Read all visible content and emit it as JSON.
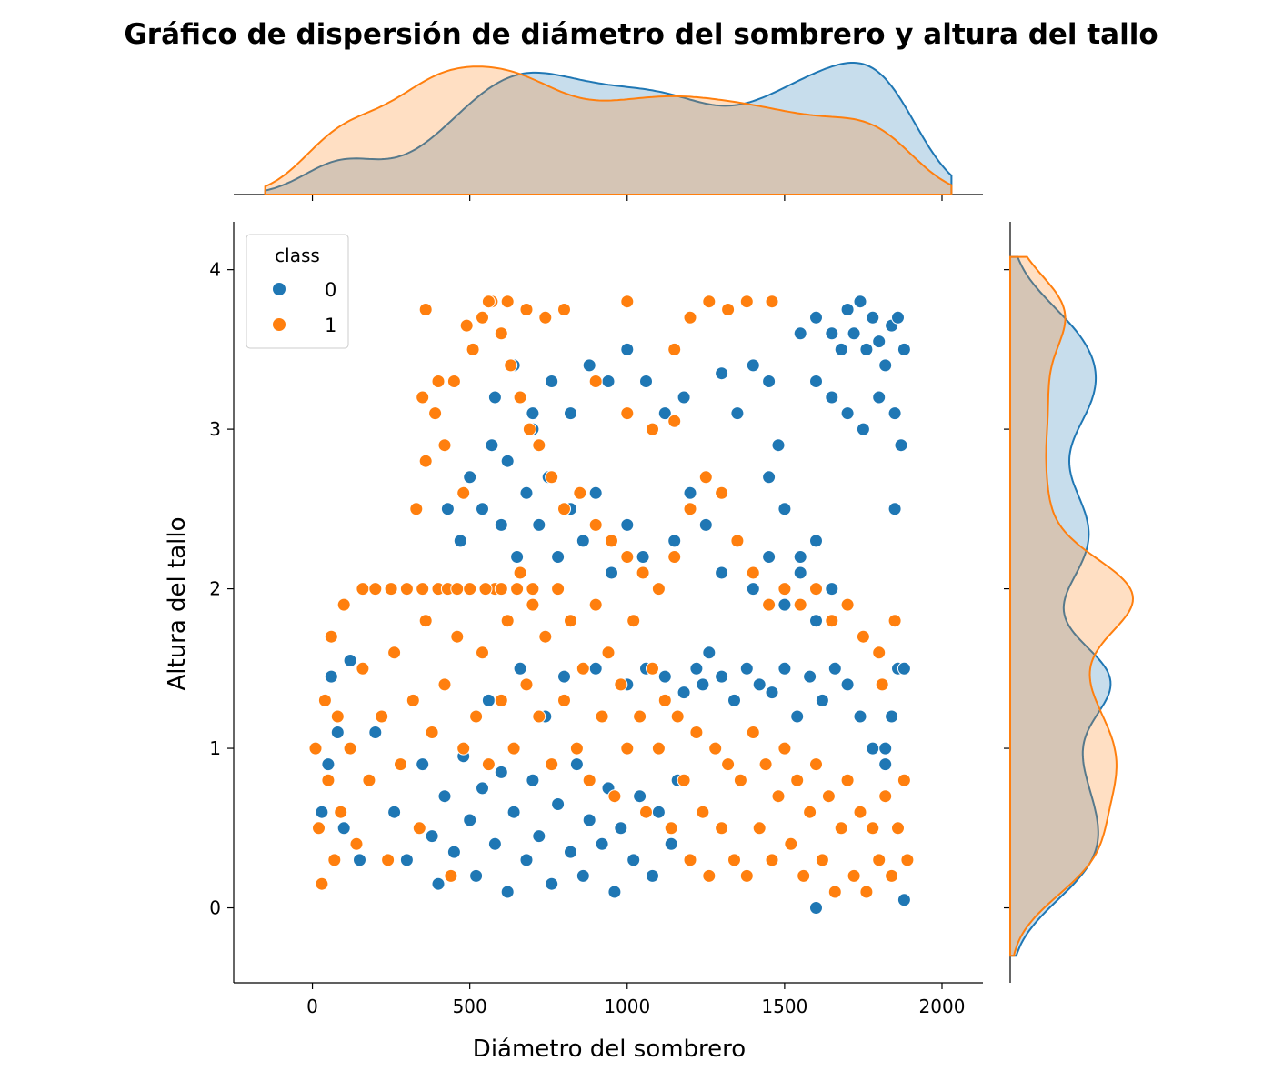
{
  "chart_data": {
    "type": "scatter",
    "title": "Gráfico de dispersión de diámetro del sombrero y altura del tallo",
    "xlabel": "Diámetro del sombrero",
    "ylabel": "Altura del tallo",
    "xlim": [
      -250,
      2130
    ],
    "ylim": [
      -0.47,
      4.3
    ],
    "xticks": [
      0,
      500,
      1000,
      1500,
      2000
    ],
    "xtick_labels": [
      "0",
      "500",
      "1000",
      "1500",
      "2000"
    ],
    "yticks": [
      0,
      1,
      2,
      3,
      4
    ],
    "ytick_labels": [
      "0",
      "1",
      "2",
      "3",
      "4"
    ],
    "grid": false,
    "legend": {
      "title": "class",
      "placement": "top-left"
    },
    "series": [
      {
        "name": "0",
        "color": "#1f77b4",
        "points": [
          [
            60,
            1.45
          ],
          [
            120,
            1.55
          ],
          [
            200,
            1.1
          ],
          [
            260,
            0.6
          ],
          [
            300,
            0.3
          ],
          [
            350,
            0.9
          ],
          [
            380,
            0.45
          ],
          [
            400,
            0.15
          ],
          [
            420,
            0.7
          ],
          [
            450,
            0.35
          ],
          [
            480,
            0.95
          ],
          [
            500,
            0.55
          ],
          [
            520,
            0.2
          ],
          [
            540,
            0.75
          ],
          [
            560,
            1.3
          ],
          [
            580,
            0.4
          ],
          [
            600,
            0.85
          ],
          [
            620,
            0.1
          ],
          [
            640,
            0.6
          ],
          [
            660,
            1.5
          ],
          [
            680,
            0.3
          ],
          [
            700,
            0.8
          ],
          [
            720,
            0.45
          ],
          [
            740,
            1.2
          ],
          [
            760,
            0.15
          ],
          [
            780,
            0.65
          ],
          [
            800,
            1.45
          ],
          [
            820,
            0.35
          ],
          [
            840,
            0.9
          ],
          [
            860,
            0.2
          ],
          [
            880,
            0.55
          ],
          [
            900,
            1.5
          ],
          [
            920,
            0.4
          ],
          [
            940,
            0.75
          ],
          [
            960,
            0.1
          ],
          [
            980,
            0.5
          ],
          [
            1000,
            1.4
          ],
          [
            1020,
            0.3
          ],
          [
            1040,
            0.7
          ],
          [
            1060,
            1.5
          ],
          [
            1080,
            0.2
          ],
          [
            1100,
            0.6
          ],
          [
            1120,
            1.45
          ],
          [
            1140,
            0.4
          ],
          [
            1160,
            0.8
          ],
          [
            1180,
            1.35
          ],
          [
            1200,
            0.3
          ],
          [
            1220,
            1.5
          ],
          [
            1240,
            1.4
          ],
          [
            1260,
            1.6
          ],
          [
            1300,
            1.45
          ],
          [
            1340,
            1.3
          ],
          [
            1380,
            1.5
          ],
          [
            1420,
            1.4
          ],
          [
            1460,
            1.35
          ],
          [
            1500,
            1.5
          ],
          [
            1540,
            1.2
          ],
          [
            1580,
            1.45
          ],
          [
            1620,
            1.3
          ],
          [
            1660,
            1.5
          ],
          [
            1700,
            1.4
          ],
          [
            1740,
            1.2
          ],
          [
            1780,
            1.0
          ],
          [
            1820,
            0.9
          ],
          [
            1860,
            1.5
          ],
          [
            430,
            2.5
          ],
          [
            470,
            2.3
          ],
          [
            500,
            2.7
          ],
          [
            540,
            2.5
          ],
          [
            570,
            2.9
          ],
          [
            600,
            2.4
          ],
          [
            620,
            2.8
          ],
          [
            650,
            2.2
          ],
          [
            680,
            2.6
          ],
          [
            700,
            3.1
          ],
          [
            720,
            2.4
          ],
          [
            750,
            2.7
          ],
          [
            780,
            2.2
          ],
          [
            820,
            2.5
          ],
          [
            860,
            2.3
          ],
          [
            900,
            2.6
          ],
          [
            950,
            2.1
          ],
          [
            1000,
            2.4
          ],
          [
            1050,
            2.2
          ],
          [
            1100,
            2.0
          ],
          [
            1150,
            2.3
          ],
          [
            1200,
            2.6
          ],
          [
            1250,
            2.4
          ],
          [
            1300,
            2.1
          ],
          [
            1350,
            2.3
          ],
          [
            1400,
            2.0
          ],
          [
            1450,
            2.2
          ],
          [
            1500,
            1.9
          ],
          [
            1550,
            2.1
          ],
          [
            1600,
            1.8
          ],
          [
            1650,
            2.0
          ],
          [
            1700,
            1.9
          ],
          [
            1750,
            1.7
          ],
          [
            580,
            3.2
          ],
          [
            640,
            3.4
          ],
          [
            700,
            3.0
          ],
          [
            760,
            3.3
          ],
          [
            820,
            3.1
          ],
          [
            880,
            3.4
          ],
          [
            940,
            3.3
          ],
          [
            1000,
            3.5
          ],
          [
            1060,
            3.3
          ],
          [
            1120,
            3.1
          ],
          [
            1180,
            3.2
          ],
          [
            1300,
            3.35
          ],
          [
            1350,
            3.1
          ],
          [
            1400,
            3.4
          ],
          [
            1450,
            3.3
          ],
          [
            1480,
            2.9
          ],
          [
            1550,
            3.6
          ],
          [
            1600,
            3.7
          ],
          [
            1650,
            3.6
          ],
          [
            1680,
            3.5
          ],
          [
            1700,
            3.75
          ],
          [
            1720,
            3.6
          ],
          [
            1740,
            3.8
          ],
          [
            1760,
            3.5
          ],
          [
            1780,
            3.7
          ],
          [
            1800,
            3.55
          ],
          [
            1820,
            3.4
          ],
          [
            1840,
            3.65
          ],
          [
            1860,
            3.7
          ],
          [
            1880,
            3.5
          ],
          [
            1600,
            3.3
          ],
          [
            1650,
            3.2
          ],
          [
            1700,
            3.1
          ],
          [
            1750,
            3.0
          ],
          [
            1800,
            3.2
          ],
          [
            1850,
            3.1
          ],
          [
            1550,
            2.2
          ],
          [
            1600,
            2.3
          ],
          [
            1500,
            2.5
          ],
          [
            1450,
            2.7
          ],
          [
            1850,
            2.5
          ],
          [
            1870,
            2.9
          ],
          [
            1880,
            1.5
          ],
          [
            1840,
            1.2
          ],
          [
            1820,
            1.0
          ],
          [
            1600,
            0.0
          ],
          [
            1880,
            0.05
          ],
          [
            30,
            0.6
          ],
          [
            50,
            0.9
          ],
          [
            80,
            1.1
          ],
          [
            100,
            0.5
          ],
          [
            150,
            0.3
          ]
        ]
      },
      {
        "name": "1",
        "color": "#ff7f0e",
        "points": [
          [
            10,
            1.0
          ],
          [
            20,
            0.5
          ],
          [
            30,
            0.15
          ],
          [
            40,
            1.3
          ],
          [
            50,
            0.8
          ],
          [
            60,
            1.7
          ],
          [
            70,
            0.3
          ],
          [
            80,
            1.2
          ],
          [
            90,
            0.6
          ],
          [
            100,
            1.9
          ],
          [
            120,
            1.0
          ],
          [
            140,
            0.4
          ],
          [
            160,
            1.5
          ],
          [
            180,
            0.8
          ],
          [
            200,
            2.0
          ],
          [
            220,
            1.2
          ],
          [
            240,
            0.3
          ],
          [
            260,
            1.6
          ],
          [
            280,
            0.9
          ],
          [
            300,
            2.0
          ],
          [
            320,
            1.3
          ],
          [
            340,
            0.5
          ],
          [
            360,
            1.8
          ],
          [
            380,
            1.1
          ],
          [
            400,
            2.0
          ],
          [
            420,
            1.4
          ],
          [
            440,
            0.2
          ],
          [
            460,
            1.7
          ],
          [
            480,
            1.0
          ],
          [
            500,
            2.0
          ],
          [
            520,
            1.2
          ],
          [
            540,
            1.6
          ],
          [
            560,
            0.9
          ],
          [
            580,
            2.0
          ],
          [
            600,
            1.3
          ],
          [
            620,
            1.8
          ],
          [
            640,
            1.0
          ],
          [
            660,
            2.1
          ],
          [
            680,
            1.4
          ],
          [
            700,
            1.9
          ],
          [
            720,
            1.2
          ],
          [
            740,
            1.7
          ],
          [
            760,
            0.9
          ],
          [
            780,
            2.0
          ],
          [
            800,
            1.3
          ],
          [
            820,
            1.8
          ],
          [
            840,
            1.0
          ],
          [
            860,
            1.5
          ],
          [
            880,
            0.8
          ],
          [
            900,
            1.9
          ],
          [
            920,
            1.2
          ],
          [
            940,
            1.6
          ],
          [
            960,
            0.7
          ],
          [
            980,
            1.4
          ],
          [
            1000,
            1.0
          ],
          [
            1020,
            1.8
          ],
          [
            1040,
            1.2
          ],
          [
            1060,
            0.6
          ],
          [
            1080,
            1.5
          ],
          [
            1100,
            1.0
          ],
          [
            1120,
            1.3
          ],
          [
            1140,
            0.5
          ],
          [
            1160,
            1.2
          ],
          [
            1180,
            0.8
          ],
          [
            1200,
            0.3
          ],
          [
            1220,
            1.1
          ],
          [
            1240,
            0.6
          ],
          [
            1260,
            0.2
          ],
          [
            1280,
            1.0
          ],
          [
            1300,
            0.5
          ],
          [
            1320,
            0.9
          ],
          [
            1340,
            0.3
          ],
          [
            1360,
            0.8
          ],
          [
            1380,
            0.2
          ],
          [
            1400,
            1.1
          ],
          [
            1420,
            0.5
          ],
          [
            1440,
            0.9
          ],
          [
            1460,
            0.3
          ],
          [
            1480,
            0.7
          ],
          [
            1500,
            1.0
          ],
          [
            1520,
            0.4
          ],
          [
            1540,
            0.8
          ],
          [
            1560,
            0.2
          ],
          [
            1580,
            0.6
          ],
          [
            1600,
            0.9
          ],
          [
            1620,
            0.3
          ],
          [
            1640,
            0.7
          ],
          [
            1660,
            0.1
          ],
          [
            1680,
            0.5
          ],
          [
            1700,
            0.8
          ],
          [
            1720,
            0.2
          ],
          [
            1740,
            0.6
          ],
          [
            1760,
            0.1
          ],
          [
            1780,
            0.5
          ],
          [
            1800,
            0.3
          ],
          [
            1820,
            0.7
          ],
          [
            1840,
            0.2
          ],
          [
            1860,
            0.5
          ],
          [
            1880,
            0.8
          ],
          [
            1890,
            0.3
          ],
          [
            330,
            2.5
          ],
          [
            360,
            2.8
          ],
          [
            390,
            3.1
          ],
          [
            420,
            2.9
          ],
          [
            450,
            3.3
          ],
          [
            480,
            2.6
          ],
          [
            510,
            3.5
          ],
          [
            540,
            3.7
          ],
          [
            570,
            3.8
          ],
          [
            600,
            3.6
          ],
          [
            630,
            3.4
          ],
          [
            660,
            3.2
          ],
          [
            690,
            3.0
          ],
          [
            720,
            2.9
          ],
          [
            760,
            2.7
          ],
          [
            800,
            2.5
          ],
          [
            850,
            2.6
          ],
          [
            900,
            2.4
          ],
          [
            950,
            2.3
          ],
          [
            1000,
            2.2
          ],
          [
            1050,
            2.1
          ],
          [
            1100,
            2.0
          ],
          [
            1150,
            2.2
          ],
          [
            1200,
            2.5
          ],
          [
            1250,
            2.7
          ],
          [
            1300,
            2.6
          ],
          [
            1350,
            2.3
          ],
          [
            1400,
            2.1
          ],
          [
            1450,
            1.9
          ],
          [
            1500,
            2.0
          ],
          [
            1550,
            1.9
          ],
          [
            1600,
            2.0
          ],
          [
            1650,
            1.8
          ],
          [
            1700,
            1.9
          ],
          [
            1750,
            1.7
          ],
          [
            1800,
            1.6
          ],
          [
            1850,
            1.8
          ],
          [
            1810,
            1.4
          ],
          [
            560,
            3.8
          ],
          [
            620,
            3.8
          ],
          [
            680,
            3.75
          ],
          [
            740,
            3.7
          ],
          [
            800,
            3.75
          ],
          [
            1000,
            3.8
          ],
          [
            1200,
            3.7
          ],
          [
            1260,
            3.8
          ],
          [
            1320,
            3.75
          ],
          [
            1380,
            3.8
          ],
          [
            1460,
            3.8
          ],
          [
            1150,
            3.5
          ],
          [
            1080,
            3.0
          ],
          [
            1150,
            3.05
          ],
          [
            1000,
            3.1
          ],
          [
            900,
            3.3
          ],
          [
            360,
            3.75
          ],
          [
            490,
            3.65
          ],
          [
            350,
            3.2
          ],
          [
            400,
            3.3
          ],
          [
            430,
            2.0
          ],
          [
            460,
            2.0
          ],
          [
            500,
            2.0
          ],
          [
            550,
            2.0
          ],
          [
            600,
            2.0
          ],
          [
            650,
            2.0
          ],
          [
            700,
            2.0
          ],
          [
            160,
            2.0
          ],
          [
            200,
            2.0
          ],
          [
            250,
            2.0
          ],
          [
            300,
            2.0
          ],
          [
            350,
            2.0
          ]
        ]
      }
    ]
  }
}
